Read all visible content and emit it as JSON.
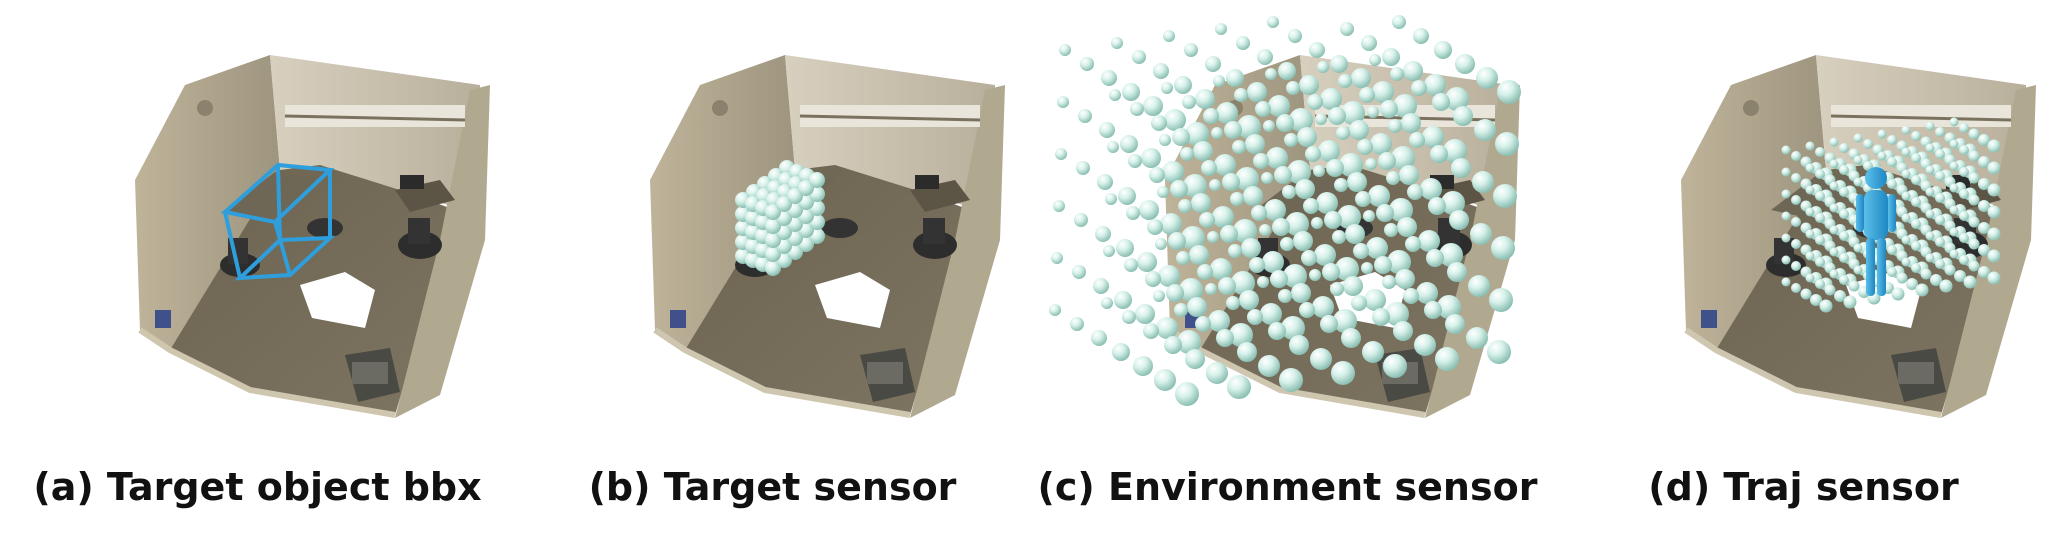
{
  "figure": {
    "panels": [
      {
        "id": "a",
        "caption": "(a) Target object bbx",
        "overlay": "bounding-box",
        "overlay_color": "#2e9fdc"
      },
      {
        "id": "b",
        "caption": "(b) Target sensor",
        "overlay": "sphere-grid-on-object",
        "overlay_color": "#cfeee6"
      },
      {
        "id": "c",
        "caption": "(c) Environment sensor",
        "overlay": "sphere-grid-whole-room",
        "overlay_color": "#cfeee6"
      },
      {
        "id": "d",
        "caption": "(d) Traj sensor",
        "overlay": "sphere-grid-around-human",
        "overlay_color": "#cfeee6",
        "human_color": "#2f9fd8"
      }
    ]
  }
}
